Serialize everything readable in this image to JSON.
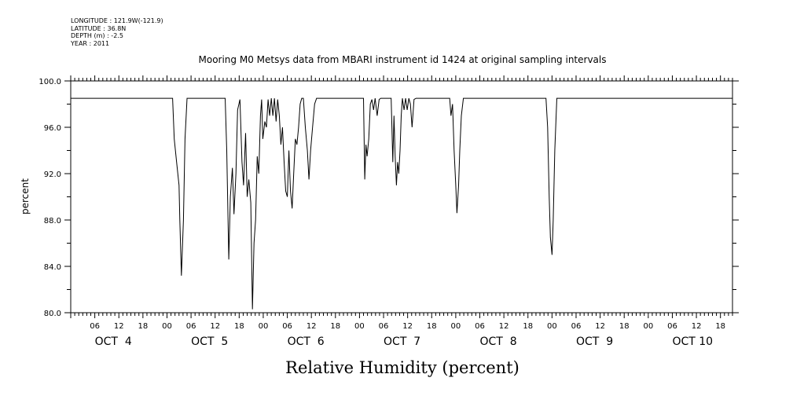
{
  "header": {
    "longitude": "LONGITUDE : 121.9W(-121.9)",
    "latitude": "LATITUDE : 36.8N",
    "depth": "DEPTH (m) : -2.5",
    "year": "YEAR : 2011"
  },
  "chart_data": {
    "type": "line",
    "title": "Mooring M0 Metsys data from MBARI instrument id 1424 at original sampling intervals",
    "xlabel": "Relative Humidity (percent)",
    "ylabel": "percent",
    "ylim": [
      80.0,
      100.0
    ],
    "yticks": [
      "80.0",
      "84.0",
      "88.0",
      "92.0",
      "96.0",
      "100.0"
    ],
    "xlim_hours": [
      0,
      165
    ],
    "x_hour_ticks": [
      "06",
      "12",
      "18",
      "00",
      "06",
      "12",
      "18",
      "00",
      "06",
      "12",
      "18",
      "00",
      "06",
      "12",
      "18",
      "00",
      "06",
      "12",
      "18",
      "00",
      "06",
      "12",
      "18",
      "00",
      "06",
      "12",
      "18"
    ],
    "x_day_labels": [
      "OCT  4",
      "OCT  5",
      "OCT  6",
      "OCT  7",
      "OCT  8",
      "OCT  9",
      "OCT 10"
    ],
    "grid": false,
    "legend": "none",
    "series": [
      {
        "x": [
          0,
          25.4,
          25.8,
          26.4,
          27.0,
          27.2,
          27.6,
          28.1,
          28.5,
          29.0,
          29.5,
          38.5,
          38.9,
          39.4,
          39.8,
          40.3,
          40.7,
          41.2,
          41.6,
          42.2,
          42.7,
          43.1,
          43.6,
          44.0,
          44.4,
          44.9,
          45.3,
          45.7,
          46.1,
          46.5,
          46.9,
          47.3,
          47.6,
          47.9,
          48.4,
          48.8,
          49.2,
          49.6,
          50.0,
          50.4,
          50.8,
          51.2,
          51.6,
          52.0,
          52.4,
          52.8,
          53.2,
          53.6,
          54.0,
          54.4,
          54.8,
          55.2,
          55.6,
          56.0,
          56.4,
          56.8,
          57.2,
          57.6,
          58.0,
          58.5,
          59.0,
          59.4,
          59.8,
          60.3,
          60.8,
          61.3,
          61.8,
          62.3,
          62.8,
          73.0,
          73.3,
          73.6,
          73.9,
          74.3,
          74.7,
          75.1,
          75.5,
          75.9,
          76.4,
          76.9,
          77.3,
          77.8,
          78.2,
          79.9,
          80.3,
          80.6,
          80.9,
          81.2,
          81.5,
          81.8,
          82.1,
          82.4,
          82.7,
          83.1,
          83.5,
          83.9,
          84.3,
          84.7,
          85.1,
          85.6,
          86.1,
          86.5,
          87.0,
          87.4,
          87.9,
          94.5,
          94.8,
          95.2,
          95.6,
          96.0,
          96.3,
          96.7,
          97.0,
          97.4,
          97.9,
          98.4,
          118.5,
          118.9,
          119.3,
          119.6,
          120.0,
          120.3,
          120.7,
          121.2,
          165
        ],
        "values": [
          98.5,
          98.5,
          95.0,
          93.0,
          91.0,
          88.0,
          83.2,
          88.0,
          95.0,
          98.5,
          98.5,
          98.5,
          94.0,
          84.6,
          90.0,
          92.5,
          88.5,
          92.0,
          97.5,
          98.4,
          93.0,
          91.0,
          95.5,
          90.0,
          91.5,
          89.5,
          80.3,
          86.0,
          88.0,
          93.5,
          92.0,
          97.0,
          98.4,
          95.0,
          96.5,
          96.0,
          98.4,
          97.0,
          98.5,
          97.0,
          98.5,
          96.5,
          98.4,
          97.0,
          94.5,
          96.0,
          93.0,
          90.5,
          90.0,
          94.0,
          90.5,
          89.0,
          92.0,
          95.0,
          94.5,
          96.0,
          98.0,
          98.5,
          98.5,
          96.0,
          94.0,
          91.5,
          94.0,
          96.0,
          98.0,
          98.5,
          98.5,
          98.5,
          98.5,
          98.5,
          91.5,
          94.5,
          93.5,
          95.0,
          98.0,
          98.4,
          97.5,
          98.5,
          97.0,
          98.4,
          98.5,
          98.5,
          98.5,
          98.5,
          93.0,
          97.0,
          93.5,
          91.0,
          93.0,
          92.0,
          94.0,
          97.0,
          98.5,
          97.5,
          98.5,
          97.5,
          98.5,
          98.0,
          96.0,
          98.4,
          98.5,
          98.5,
          98.5,
          98.5,
          98.5,
          98.5,
          97.0,
          98.0,
          94.0,
          91.0,
          88.6,
          91.0,
          94.0,
          97.0,
          98.5,
          98.5,
          98.5,
          96.0,
          90.0,
          86.5,
          85.0,
          88.0,
          94.0,
          98.5,
          98.5
        ]
      }
    ]
  }
}
